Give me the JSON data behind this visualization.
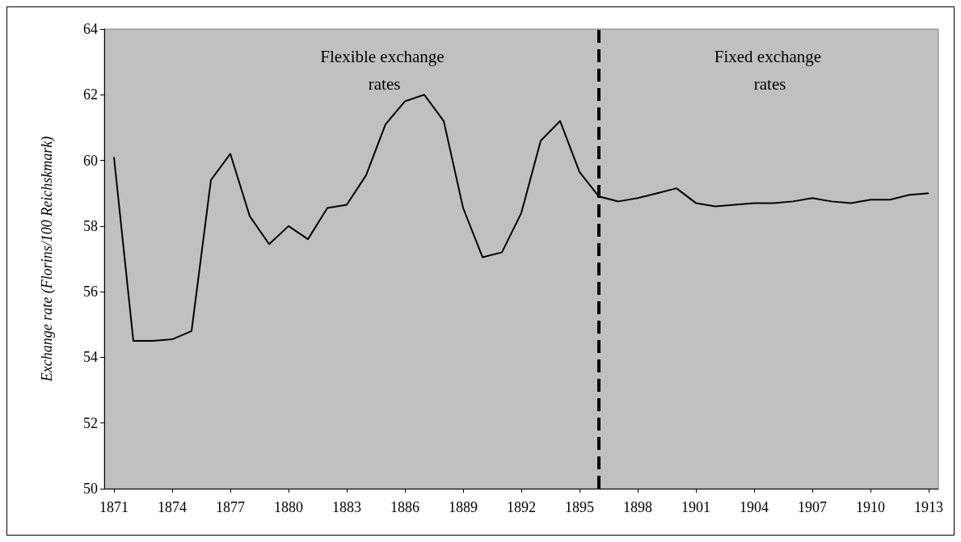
{
  "chart_data": {
    "type": "line",
    "ylabel": "Exchange rate (Florins/100 Reichskmark)",
    "x": [
      1871,
      1872,
      1873,
      1874,
      1875,
      1876,
      1877,
      1878,
      1879,
      1880,
      1881,
      1882,
      1883,
      1884,
      1885,
      1886,
      1887,
      1888,
      1889,
      1890,
      1891,
      1892,
      1893,
      1894,
      1895,
      1896,
      1897,
      1898,
      1899,
      1900,
      1901,
      1902,
      1903,
      1904,
      1905,
      1906,
      1907,
      1908,
      1909,
      1910,
      1911,
      1912,
      1913
    ],
    "series": [
      {
        "color": "#000000",
        "values": [
          60.1,
          54.5,
          54.5,
          54.55,
          54.8,
          59.4,
          60.2,
          58.3,
          57.45,
          58.0,
          57.6,
          58.55,
          58.65,
          59.55,
          61.1,
          61.8,
          62.0,
          61.2,
          58.55,
          57.05,
          57.2,
          58.4,
          60.6,
          61.2,
          59.65,
          58.9,
          58.75,
          58.85,
          59.0,
          59.15,
          58.7,
          58.6,
          58.65,
          58.7,
          58.7,
          58.75,
          58.85,
          58.75,
          58.7,
          58.8,
          58.8,
          58.95,
          59.0
        ]
      }
    ],
    "xlim": [
      1870.5,
      1913.5
    ],
    "xticks": [
      1871,
      1874,
      1877,
      1880,
      1883,
      1886,
      1889,
      1892,
      1895,
      1898,
      1901,
      1904,
      1907,
      1910,
      1913
    ],
    "ylim": [
      50,
      64
    ],
    "yticks": [
      50,
      52,
      54,
      56,
      58,
      60,
      62,
      64
    ],
    "ref_lines": [
      {
        "axis": "x",
        "value": 1896,
        "color": "#000000",
        "line_style": "dashed"
      }
    ],
    "annotations": [
      "Flexible exchange rates",
      "Fixed exchange rates"
    ],
    "grid": false,
    "marker": "none",
    "line_style": "solid"
  }
}
